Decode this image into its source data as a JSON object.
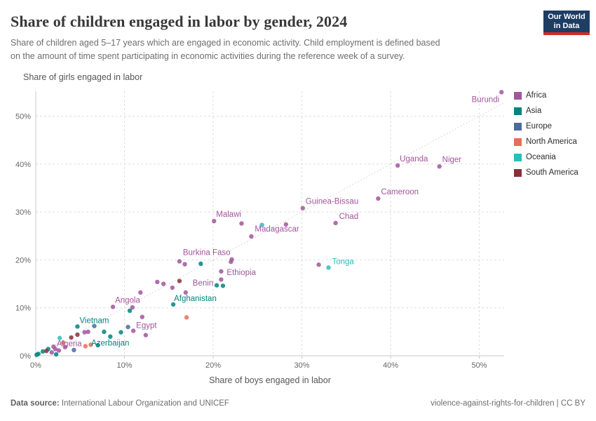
{
  "header": {
    "title": "Share of children engaged in labor by gender, 2024",
    "subtitle_lines": [
      "Share of children aged 5–17 years which are engaged in economic activity. Child employment is defined based",
      "on the amount of time spent participating in economic activities during the reference week of a survey."
    ],
    "logo": {
      "line1": "Our World",
      "line2": "in Data",
      "bg": "#1d3d63",
      "accent": "#d42b21"
    }
  },
  "chart_data": {
    "type": "scatter",
    "title": "Share of children engaged in labor by gender, 2024",
    "xlabel": "Share of boys engaged in labor",
    "ylabel": "Share of girls engaged in labor",
    "xlim": [
      0,
      52.8
    ],
    "ylim": [
      0,
      55.2
    ],
    "x_ticks": [
      0,
      10,
      20,
      30,
      40,
      50
    ],
    "y_ticks": [
      0,
      10,
      20,
      30,
      40,
      50
    ],
    "tick_suffix": "%",
    "grid": true,
    "diagonal_parity_line": true,
    "legend_position": "right",
    "series": [
      {
        "name": "Africa",
        "color": "#a2559c",
        "points": [
          {
            "x": 52.5,
            "y": 55.0,
            "label": "Burundi",
            "anchor": "end",
            "dx": -3,
            "dy": 14
          },
          {
            "x": 45.5,
            "y": 39.5,
            "label": "Niger",
            "anchor": "start",
            "dx": 4,
            "dy": -6
          },
          {
            "x": 40.8,
            "y": 39.7,
            "label": "Uganda",
            "anchor": "start",
            "dx": 3,
            "dy": -6
          },
          {
            "x": 38.6,
            "y": 32.8,
            "label": "Cameroon",
            "anchor": "start",
            "dx": 4,
            "dy": -6
          },
          {
            "x": 30.1,
            "y": 30.8,
            "label": "Guinea-Bissau",
            "anchor": "start",
            "dx": 4,
            "dy": -6
          },
          {
            "x": 33.8,
            "y": 27.7,
            "label": "Chad",
            "anchor": "start",
            "dx": 5,
            "dy": -6
          },
          {
            "x": 20.1,
            "y": 28.1,
            "label": "Malawi",
            "anchor": "start",
            "dx": 3,
            "dy": -6
          },
          {
            "x": 24.3,
            "y": 24.9,
            "label": "Madagascar",
            "anchor": "start",
            "dx": 5,
            "dy": -7
          },
          {
            "x": 22.1,
            "y": 20.1,
            "label": "Burkina Faso",
            "anchor": "end",
            "dx": -2,
            "dy": -6
          },
          {
            "x": 20.9,
            "y": 17.6,
            "label": "Ethiopia",
            "anchor": "start",
            "dx": 8,
            "dy": 5
          },
          {
            "x": 16.9,
            "y": 13.2,
            "label": "Benin",
            "anchor": "start",
            "dx": 10,
            "dy": -10
          },
          {
            "x": 8.7,
            "y": 10.2,
            "label": "Angola",
            "anchor": "start",
            "dx": 3,
            "dy": -6
          },
          {
            "x": 11.0,
            "y": 5.2,
            "label": "Egypt",
            "anchor": "start",
            "dx": 4,
            "dy": -4
          },
          {
            "x": 2.2,
            "y": 1.4,
            "label": "Algeria",
            "anchor": "start",
            "dx": 2,
            "dy": -4
          },
          {
            "x": 23.2,
            "y": 27.6
          },
          {
            "x": 28.2,
            "y": 27.4
          },
          {
            "x": 31.9,
            "y": 19.0
          },
          {
            "x": 16.2,
            "y": 19.7
          },
          {
            "x": 16.8,
            "y": 19.1
          },
          {
            "x": 22.0,
            "y": 19.6
          },
          {
            "x": 20.9,
            "y": 15.9
          },
          {
            "x": 13.7,
            "y": 15.4
          },
          {
            "x": 14.4,
            "y": 15.0
          },
          {
            "x": 15.4,
            "y": 14.2
          },
          {
            "x": 11.8,
            "y": 13.2
          },
          {
            "x": 10.9,
            "y": 10.1
          },
          {
            "x": 12.0,
            "y": 8.1
          },
          {
            "x": 12.4,
            "y": 4.3
          },
          {
            "x": 5.5,
            "y": 4.9
          },
          {
            "x": 5.9,
            "y": 5.0
          },
          {
            "x": 3.3,
            "y": 1.8
          },
          {
            "x": 2.0,
            "y": 1.9
          },
          {
            "x": 2.6,
            "y": 1.1
          },
          {
            "x": 1.8,
            "y": 0.7
          }
        ]
      },
      {
        "name": "Asia",
        "color": "#00847e",
        "points": [
          {
            "x": 15.5,
            "y": 10.7,
            "label": "Afghanistan",
            "anchor": "start",
            "dx": 1,
            "dy": -5
          },
          {
            "x": 4.7,
            "y": 6.1,
            "label": "Vietnam",
            "anchor": "start",
            "dx": 3,
            "dy": -5
          },
          {
            "x": 8.4,
            "y": 4.0,
            "label": "Azerbaijan",
            "anchor": "middle",
            "dx": 0,
            "dy": 13
          },
          {
            "x": 18.6,
            "y": 19.2
          },
          {
            "x": 20.4,
            "y": 14.7
          },
          {
            "x": 21.1,
            "y": 14.6
          },
          {
            "x": 10.6,
            "y": 9.4
          },
          {
            "x": 9.6,
            "y": 4.9
          },
          {
            "x": 7.7,
            "y": 5.0
          },
          {
            "x": 7.0,
            "y": 2.2
          },
          {
            "x": 2.3,
            "y": 0.3
          },
          {
            "x": 1.4,
            "y": 1.4
          },
          {
            "x": 0.8,
            "y": 0.9
          },
          {
            "x": 0.3,
            "y": 0.4
          },
          {
            "x": 0.1,
            "y": 0.2
          }
        ]
      },
      {
        "name": "Europe",
        "color": "#4c6a9c",
        "points": [
          {
            "x": 10.4,
            "y": 6.0
          },
          {
            "x": 6.6,
            "y": 6.2
          },
          {
            "x": 4.3,
            "y": 1.2
          }
        ]
      },
      {
        "name": "North America",
        "color": "#e56e5a",
        "points": [
          {
            "x": 17.0,
            "y": 8.0
          },
          {
            "x": 6.2,
            "y": 2.3
          },
          {
            "x": 5.6,
            "y": 2.0
          },
          {
            "x": 3.1,
            "y": 2.7
          }
        ]
      },
      {
        "name": "Oceania",
        "color": "#29bebc",
        "points": [
          {
            "x": 33.0,
            "y": 18.4,
            "label": "Tonga",
            "anchor": "start",
            "dx": 5,
            "dy": -5
          },
          {
            "x": 25.5,
            "y": 27.3
          },
          {
            "x": 2.7,
            "y": 3.7
          }
        ]
      },
      {
        "name": "South America",
        "color": "#883039",
        "points": [
          {
            "x": 16.2,
            "y": 15.6
          },
          {
            "x": 4.7,
            "y": 4.4
          },
          {
            "x": 4.0,
            "y": 3.8
          },
          {
            "x": 1.2,
            "y": 1.0
          }
        ]
      }
    ]
  },
  "legend": {
    "entries": [
      {
        "label": "Africa",
        "color": "#a2559c"
      },
      {
        "label": "Asia",
        "color": "#00847e"
      },
      {
        "label": "Europe",
        "color": "#4c6a9c"
      },
      {
        "label": "North America",
        "color": "#e56e5a"
      },
      {
        "label": "Oceania",
        "color": "#29bebc"
      },
      {
        "label": "South America",
        "color": "#883039"
      }
    ]
  },
  "footer": {
    "source_label": "Data source:",
    "source_text": "International Labour Organization and UNICEF",
    "right_text": "violence-against-rights-for-children | CC BY"
  }
}
